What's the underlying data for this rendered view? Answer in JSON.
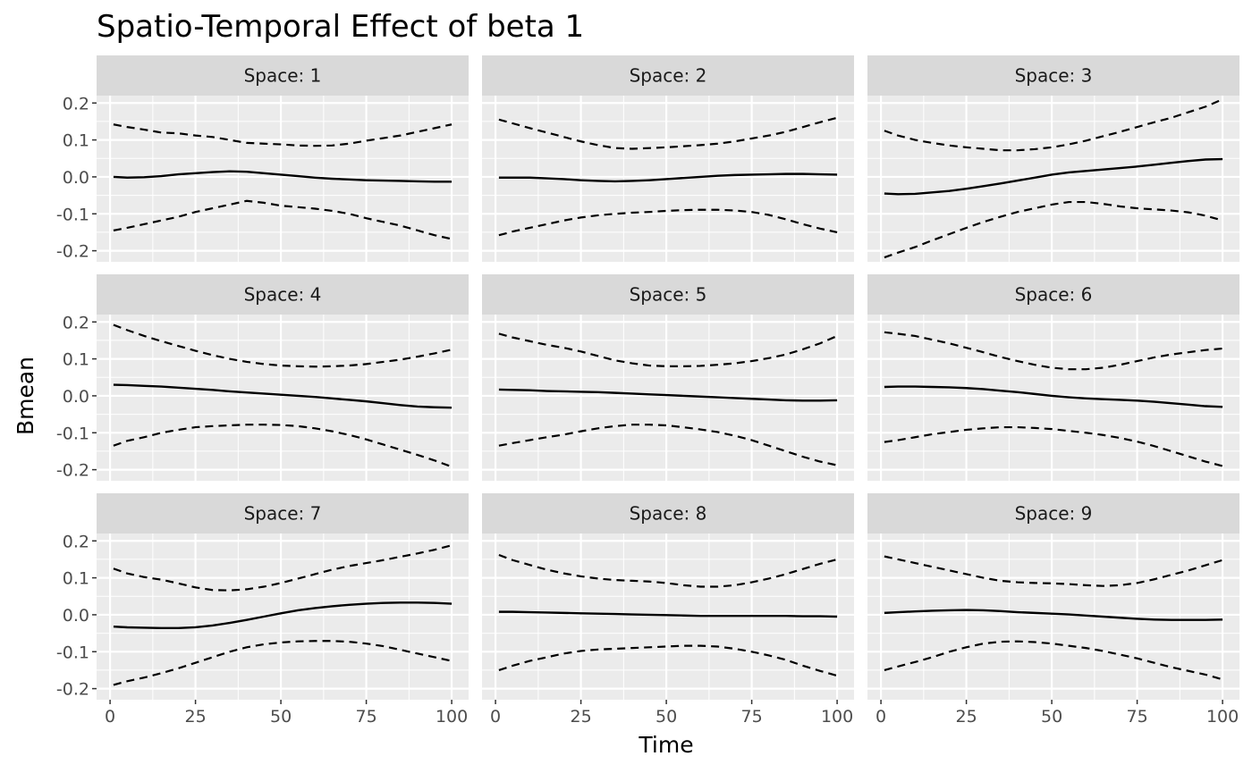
{
  "chart_data": {
    "type": "line",
    "title": "Spatio-Temporal Effect of beta 1",
    "xlabel": "Time",
    "ylabel": "Bmean",
    "xlim": [
      1,
      100
    ],
    "ylim": [
      -0.23,
      0.22
    ],
    "x_ticks": [
      0,
      25,
      50,
      75,
      100
    ],
    "y_ticks": [
      -0.2,
      -0.1,
      0.0,
      0.1,
      0.2
    ],
    "y_tick_labels": [
      "-0.2",
      "-0.1",
      "0.0",
      "0.1",
      "0.2"
    ],
    "grid": true,
    "facet_layout": "3x3",
    "line_styles": {
      "mean": "solid",
      "lower": "dashed",
      "upper": "dashed"
    },
    "colors": {
      "panel_bg": "#ebebeb",
      "strip_bg": "#d9d9d9",
      "grid": "#ffffff",
      "line": "#000000"
    },
    "x": [
      0,
      5,
      10,
      15,
      20,
      25,
      30,
      35,
      40,
      45,
      50,
      55,
      60,
      65,
      70,
      75,
      80,
      85,
      90,
      95,
      100
    ],
    "panels": [
      {
        "label": "Space: 1",
        "mean": [
          0.0,
          -0.002,
          -0.001,
          0.002,
          0.007,
          0.01,
          0.013,
          0.015,
          0.014,
          0.01,
          0.006,
          0.002,
          -0.002,
          -0.005,
          -0.007,
          -0.009,
          -0.01,
          -0.011,
          -0.012,
          -0.013,
          -0.013
        ],
        "lower": [
          -0.145,
          -0.138,
          -0.128,
          -0.118,
          -0.108,
          -0.095,
          -0.085,
          -0.075,
          -0.065,
          -0.07,
          -0.078,
          -0.082,
          -0.086,
          -0.092,
          -0.1,
          -0.112,
          -0.122,
          -0.132,
          -0.145,
          -0.158,
          -0.168
        ],
        "upper": [
          0.142,
          0.135,
          0.128,
          0.12,
          0.118,
          0.112,
          0.108,
          0.1,
          0.092,
          0.09,
          0.088,
          0.085,
          0.084,
          0.085,
          0.09,
          0.098,
          0.105,
          0.112,
          0.122,
          0.132,
          0.142
        ]
      },
      {
        "label": "Space: 2",
        "mean": [
          -0.002,
          -0.002,
          -0.002,
          -0.004,
          -0.006,
          -0.009,
          -0.011,
          -0.012,
          -0.011,
          -0.009,
          -0.006,
          -0.003,
          0.0,
          0.003,
          0.005,
          0.006,
          0.007,
          0.008,
          0.008,
          0.007,
          0.006
        ],
        "lower": [
          -0.158,
          -0.148,
          -0.138,
          -0.128,
          -0.118,
          -0.11,
          -0.104,
          -0.1,
          -0.097,
          -0.095,
          -0.092,
          -0.09,
          -0.089,
          -0.089,
          -0.091,
          -0.095,
          -0.103,
          -0.115,
          -0.128,
          -0.14,
          -0.15
        ],
        "upper": [
          0.155,
          0.145,
          0.132,
          0.12,
          0.108,
          0.096,
          0.086,
          0.078,
          0.076,
          0.078,
          0.08,
          0.083,
          0.086,
          0.09,
          0.096,
          0.104,
          0.112,
          0.122,
          0.135,
          0.148,
          0.16
        ]
      },
      {
        "label": "Space: 3",
        "mean": [
          -0.045,
          -0.047,
          -0.046,
          -0.042,
          -0.038,
          -0.032,
          -0.025,
          -0.018,
          -0.01,
          -0.002,
          0.006,
          0.012,
          0.016,
          0.02,
          0.024,
          0.028,
          0.033,
          0.038,
          0.043,
          0.047,
          0.048
        ],
        "lower": [
          -0.218,
          -0.205,
          -0.19,
          -0.172,
          -0.155,
          -0.138,
          -0.122,
          -0.108,
          -0.095,
          -0.085,
          -0.075,
          -0.068,
          -0.068,
          -0.073,
          -0.08,
          -0.085,
          -0.088,
          -0.091,
          -0.096,
          -0.105,
          -0.118
        ],
        "upper": [
          0.125,
          0.112,
          0.1,
          0.092,
          0.085,
          0.08,
          0.076,
          0.072,
          0.072,
          0.075,
          0.08,
          0.088,
          0.098,
          0.11,
          0.122,
          0.135,
          0.148,
          0.16,
          0.175,
          0.19,
          0.21
        ]
      },
      {
        "label": "Space: 4",
        "mean": [
          0.03,
          0.029,
          0.027,
          0.025,
          0.022,
          0.019,
          0.016,
          0.012,
          0.009,
          0.006,
          0.003,
          0.0,
          -0.003,
          -0.007,
          -0.011,
          -0.015,
          -0.02,
          -0.025,
          -0.029,
          -0.031,
          -0.032
        ],
        "lower": [
          -0.135,
          -0.122,
          -0.112,
          -0.1,
          -0.092,
          -0.085,
          -0.082,
          -0.08,
          -0.078,
          -0.078,
          -0.079,
          -0.082,
          -0.088,
          -0.096,
          -0.106,
          -0.118,
          -0.132,
          -0.146,
          -0.16,
          -0.175,
          -0.192
        ],
        "upper": [
          0.192,
          0.178,
          0.162,
          0.148,
          0.135,
          0.122,
          0.11,
          0.1,
          0.092,
          0.086,
          0.082,
          0.08,
          0.079,
          0.08,
          0.082,
          0.086,
          0.092,
          0.098,
          0.106,
          0.115,
          0.125
        ]
      },
      {
        "label": "Space: 5",
        "mean": [
          0.017,
          0.016,
          0.015,
          0.013,
          0.012,
          0.011,
          0.01,
          0.008,
          0.006,
          0.004,
          0.002,
          0.0,
          -0.002,
          -0.004,
          -0.006,
          -0.008,
          -0.01,
          -0.012,
          -0.013,
          -0.013,
          -0.012
        ],
        "lower": [
          -0.135,
          -0.128,
          -0.12,
          -0.112,
          -0.105,
          -0.096,
          -0.088,
          -0.082,
          -0.078,
          -0.078,
          -0.08,
          -0.085,
          -0.091,
          -0.098,
          -0.108,
          -0.12,
          -0.135,
          -0.15,
          -0.165,
          -0.178,
          -0.188
        ],
        "upper": [
          0.168,
          0.158,
          0.148,
          0.138,
          0.13,
          0.12,
          0.108,
          0.096,
          0.088,
          0.082,
          0.08,
          0.08,
          0.081,
          0.084,
          0.088,
          0.094,
          0.102,
          0.112,
          0.126,
          0.142,
          0.162
        ]
      },
      {
        "label": "Space: 6",
        "mean": [
          0.024,
          0.025,
          0.025,
          0.024,
          0.023,
          0.021,
          0.018,
          0.014,
          0.01,
          0.005,
          0.0,
          -0.004,
          -0.007,
          -0.009,
          -0.011,
          -0.013,
          -0.016,
          -0.02,
          -0.024,
          -0.028,
          -0.03
        ],
        "lower": [
          -0.125,
          -0.12,
          -0.112,
          -0.104,
          -0.098,
          -0.092,
          -0.088,
          -0.085,
          -0.085,
          -0.087,
          -0.09,
          -0.095,
          -0.1,
          -0.106,
          -0.114,
          -0.124,
          -0.136,
          -0.15,
          -0.164,
          -0.178,
          -0.19
        ],
        "upper": [
          0.172,
          0.168,
          0.162,
          0.152,
          0.142,
          0.13,
          0.118,
          0.105,
          0.094,
          0.084,
          0.076,
          0.072,
          0.072,
          0.076,
          0.084,
          0.094,
          0.104,
          0.112,
          0.118,
          0.124,
          0.128
        ]
      },
      {
        "label": "Space: 7",
        "mean": [
          -0.032,
          -0.034,
          -0.035,
          -0.036,
          -0.036,
          -0.034,
          -0.029,
          -0.022,
          -0.014,
          -0.005,
          0.004,
          0.012,
          0.018,
          0.023,
          0.027,
          0.03,
          0.032,
          0.033,
          0.033,
          0.032,
          0.03
        ],
        "lower": [
          -0.19,
          -0.18,
          -0.17,
          -0.158,
          -0.145,
          -0.13,
          -0.115,
          -0.1,
          -0.088,
          -0.08,
          -0.075,
          -0.072,
          -0.071,
          -0.071,
          -0.073,
          -0.078,
          -0.085,
          -0.095,
          -0.105,
          -0.115,
          -0.125
        ],
        "upper": [
          0.125,
          0.112,
          0.102,
          0.095,
          0.085,
          0.074,
          0.067,
          0.066,
          0.069,
          0.076,
          0.086,
          0.098,
          0.11,
          0.122,
          0.132,
          0.14,
          0.148,
          0.157,
          0.166,
          0.176,
          0.188
        ]
      },
      {
        "label": "Space: 8",
        "mean": [
          0.008,
          0.008,
          0.007,
          0.006,
          0.005,
          0.004,
          0.003,
          0.002,
          0.001,
          0.0,
          -0.001,
          -0.002,
          -0.003,
          -0.003,
          -0.003,
          -0.003,
          -0.003,
          -0.003,
          -0.004,
          -0.004,
          -0.005
        ],
        "lower": [
          -0.15,
          -0.138,
          -0.125,
          -0.115,
          -0.105,
          -0.098,
          -0.094,
          -0.092,
          -0.09,
          -0.088,
          -0.086,
          -0.084,
          -0.084,
          -0.086,
          -0.092,
          -0.1,
          -0.11,
          -0.122,
          -0.138,
          -0.152,
          -0.165
        ],
        "upper": [
          0.162,
          0.148,
          0.135,
          0.122,
          0.112,
          0.104,
          0.098,
          0.094,
          0.092,
          0.09,
          0.086,
          0.08,
          0.076,
          0.076,
          0.08,
          0.088,
          0.098,
          0.11,
          0.124,
          0.138,
          0.15
        ]
      },
      {
        "label": "Space: 9",
        "mean": [
          0.005,
          0.007,
          0.009,
          0.011,
          0.012,
          0.013,
          0.012,
          0.01,
          0.007,
          0.005,
          0.003,
          0.001,
          -0.002,
          -0.005,
          -0.008,
          -0.011,
          -0.013,
          -0.014,
          -0.014,
          -0.014,
          -0.013
        ],
        "lower": [
          -0.15,
          -0.14,
          -0.128,
          -0.115,
          -0.1,
          -0.088,
          -0.078,
          -0.073,
          -0.072,
          -0.074,
          -0.078,
          -0.084,
          -0.09,
          -0.098,
          -0.108,
          -0.118,
          -0.13,
          -0.142,
          -0.152,
          -0.162,
          -0.175
        ],
        "upper": [
          0.158,
          0.15,
          0.14,
          0.13,
          0.12,
          0.11,
          0.1,
          0.092,
          0.088,
          0.086,
          0.085,
          0.083,
          0.08,
          0.078,
          0.08,
          0.086,
          0.096,
          0.108,
          0.12,
          0.134,
          0.148
        ]
      }
    ]
  }
}
